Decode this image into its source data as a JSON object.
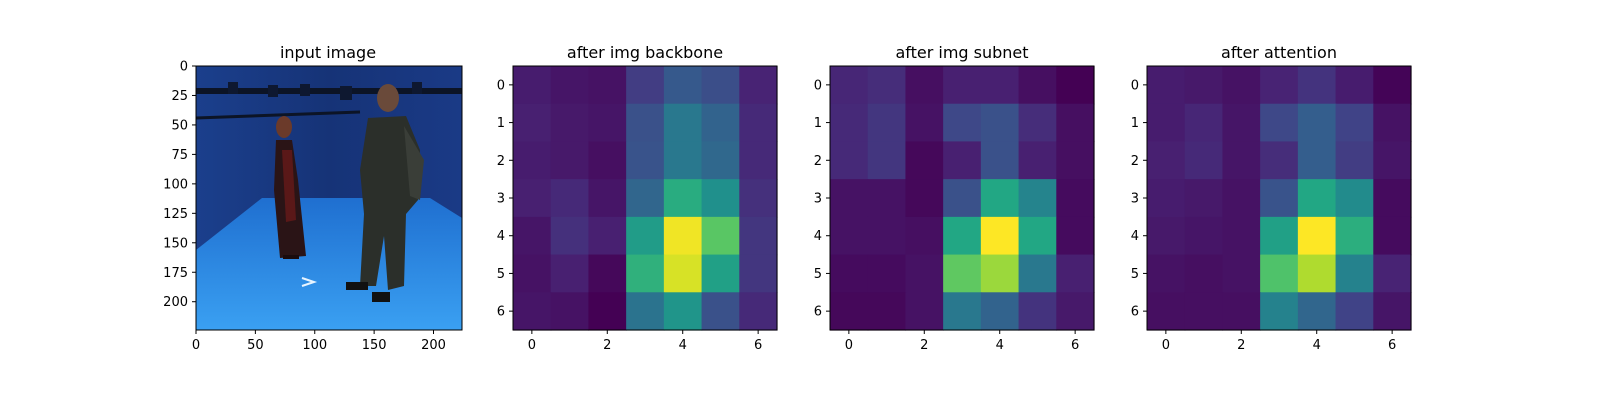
{
  "chart_data": [
    {
      "type": "image",
      "title": "input image",
      "x_ticks": [
        0,
        50,
        100,
        150,
        200
      ],
      "y_ticks": [
        0,
        25,
        50,
        75,
        100,
        125,
        150,
        175,
        200
      ],
      "xlim": [
        0,
        224
      ],
      "ylim": [
        224,
        0
      ],
      "content": "blue-screen studio photo with two standing people",
      "colors": {
        "backdrop": "#17357a",
        "floor": "#2b8fe8",
        "figure_dark": "#2b2f2a",
        "dress_red": "#5a1818",
        "arrow": "#e8f4ff"
      }
    },
    {
      "type": "heatmap",
      "title": "after img backbone",
      "colormap": "viridis",
      "x_ticks": [
        0,
        2,
        4,
        6
      ],
      "y_ticks": [
        0,
        1,
        2,
        3,
        4,
        5,
        6
      ],
      "values": [
        [
          0.08,
          0.06,
          0.05,
          0.18,
          0.28,
          0.24,
          0.1
        ],
        [
          0.09,
          0.07,
          0.06,
          0.25,
          0.4,
          0.32,
          0.12
        ],
        [
          0.08,
          0.07,
          0.04,
          0.26,
          0.4,
          0.34,
          0.12
        ],
        [
          0.09,
          0.12,
          0.06,
          0.33,
          0.62,
          0.5,
          0.14
        ],
        [
          0.06,
          0.14,
          0.09,
          0.55,
          0.98,
          0.74,
          0.16
        ],
        [
          0.05,
          0.09,
          0.02,
          0.64,
          0.94,
          0.57,
          0.16
        ],
        [
          0.06,
          0.05,
          0.0,
          0.38,
          0.52,
          0.25,
          0.12
        ]
      ]
    },
    {
      "type": "heatmap",
      "title": "after img subnet",
      "colormap": "viridis",
      "x_ticks": [
        0,
        2,
        4,
        6
      ],
      "y_ticks": [
        0,
        1,
        2,
        3,
        4,
        5,
        6
      ],
      "values": [
        [
          0.11,
          0.13,
          0.04,
          0.09,
          0.09,
          0.04,
          0.0
        ],
        [
          0.12,
          0.16,
          0.05,
          0.22,
          0.25,
          0.13,
          0.04
        ],
        [
          0.12,
          0.16,
          0.02,
          0.09,
          0.25,
          0.09,
          0.04
        ],
        [
          0.05,
          0.05,
          0.02,
          0.25,
          0.6,
          0.45,
          0.03
        ],
        [
          0.05,
          0.05,
          0.04,
          0.6,
          1.0,
          0.6,
          0.03
        ],
        [
          0.03,
          0.03,
          0.05,
          0.75,
          0.85,
          0.4,
          0.09
        ],
        [
          0.02,
          0.02,
          0.05,
          0.4,
          0.32,
          0.15,
          0.07
        ]
      ]
    },
    {
      "type": "heatmap",
      "title": "after attention",
      "colormap": "viridis",
      "x_ticks": [
        0,
        2,
        4,
        6
      ],
      "y_ticks": [
        0,
        1,
        2,
        3,
        4,
        5,
        6
      ],
      "values": [
        [
          0.08,
          0.07,
          0.05,
          0.1,
          0.15,
          0.08,
          0.01
        ],
        [
          0.08,
          0.11,
          0.06,
          0.22,
          0.3,
          0.2,
          0.05
        ],
        [
          0.09,
          0.12,
          0.06,
          0.13,
          0.3,
          0.18,
          0.06
        ],
        [
          0.08,
          0.07,
          0.05,
          0.26,
          0.6,
          0.48,
          0.03
        ],
        [
          0.07,
          0.06,
          0.05,
          0.57,
          1.0,
          0.63,
          0.03
        ],
        [
          0.05,
          0.04,
          0.05,
          0.72,
          0.88,
          0.44,
          0.1
        ],
        [
          0.04,
          0.04,
          0.04,
          0.44,
          0.33,
          0.2,
          0.06
        ]
      ]
    }
  ]
}
